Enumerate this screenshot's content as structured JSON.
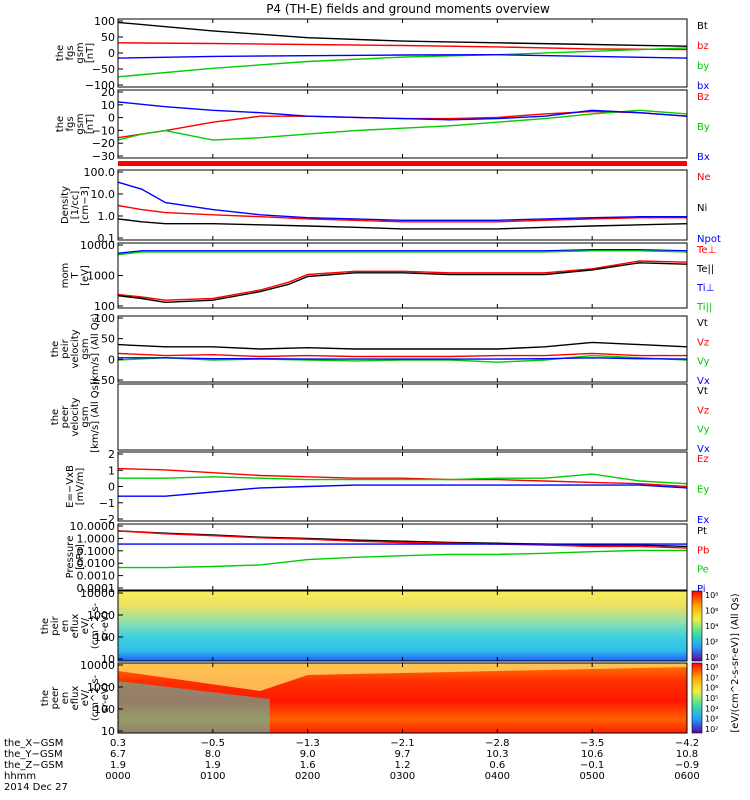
{
  "page": {
    "title": "P4 (TH-E) fields and ground moments overview"
  },
  "colors": {
    "black": "#000000",
    "red": "#ff0000",
    "green": "#00cc00",
    "blue": "#0000ff"
  },
  "chart_data": [
    {
      "id": "p1",
      "type": "line",
      "ylabel": [
        "the",
        "fgs",
        "gsm",
        "[nT]"
      ],
      "yticks": [
        "100",
        "50",
        "0",
        "−50",
        "−100"
      ],
      "ylim": [
        -100,
        100
      ],
      "legend": [
        "Bt",
        "bz",
        "by",
        "bx"
      ],
      "legend_colors": [
        "black",
        "red",
        "green",
        "blue"
      ],
      "x": [
        0,
        1,
        2,
        3,
        4,
        5,
        6
      ],
      "series": [
        {
          "name": "Bt",
          "color": "black",
          "values": [
            90,
            65,
            45,
            35,
            30,
            25,
            20
          ]
        },
        {
          "name": "bz",
          "color": "red",
          "values": [
            30,
            28,
            25,
            22,
            18,
            12,
            10
          ]
        },
        {
          "name": "by",
          "color": "green",
          "values": [
            -70,
            -45,
            -25,
            -12,
            -5,
            5,
            15
          ]
        },
        {
          "name": "bx",
          "color": "blue",
          "values": [
            -15,
            -10,
            -8,
            -6,
            -5,
            -10,
            -15
          ]
        }
      ]
    },
    {
      "id": "p2",
      "type": "line",
      "ylabel": [
        "the",
        "fgs",
        "gsm",
        "[nT]"
      ],
      "yticks": [
        "20",
        "10",
        "0",
        "−10",
        "−20",
        "−30"
      ],
      "ylim": [
        -35,
        22
      ],
      "legend": [
        "Bz",
        "By",
        "Bx"
      ],
      "legend_colors": [
        "red",
        "green",
        "blue"
      ],
      "x": [
        0,
        0.25,
        0.5,
        1,
        1.5,
        2,
        2.5,
        3,
        3.5,
        4,
        4.5,
        5,
        5.5,
        6
      ],
      "series": [
        {
          "name": "Bz",
          "color": "red",
          "values": [
            -18,
            -15,
            -12,
            -5,
            0,
            0,
            -1,
            -2,
            -2,
            -1,
            2,
            4,
            3,
            0
          ]
        },
        {
          "name": "By",
          "color": "green",
          "values": [
            -20,
            -15,
            -12,
            -20,
            -18,
            -15,
            -12,
            -10,
            -8,
            -5,
            -2,
            2,
            5,
            2
          ]
        },
        {
          "name": "Bx",
          "color": "blue",
          "values": [
            12,
            10,
            8,
            5,
            3,
            0,
            -1,
            -2,
            -3,
            -2,
            0,
            5,
            3,
            0
          ]
        }
      ]
    },
    {
      "id": "p3",
      "type": "line",
      "scale": "log",
      "ylabel": [
        "Density",
        "[1/cc]",
        "[cm−3]"
      ],
      "yticks": [
        "100.0",
        "10.0",
        "1.0",
        "0.1"
      ],
      "ylim": [
        0.1,
        100
      ],
      "legend": [
        "Ne",
        "Ni",
        "Npot"
      ],
      "legend_colors": [
        "red",
        "black",
        "blue"
      ],
      "x": [
        0,
        0.25,
        0.5,
        1,
        1.5,
        2,
        2.5,
        3,
        3.5,
        4,
        4.5,
        5,
        5.5,
        6
      ],
      "series": [
        {
          "name": "Ne",
          "color": "red",
          "values": [
            3,
            2,
            1.5,
            1.2,
            1,
            0.8,
            0.7,
            0.6,
            0.6,
            0.6,
            0.7,
            0.8,
            0.9,
            0.9
          ]
        },
        {
          "name": "Ni",
          "color": "black",
          "values": [
            0.8,
            0.6,
            0.5,
            0.5,
            0.45,
            0.4,
            0.35,
            0.3,
            0.3,
            0.3,
            0.35,
            0.4,
            0.45,
            0.5
          ]
        },
        {
          "name": "Npot",
          "color": "blue",
          "values": [
            30,
            15,
            4,
            2,
            1.2,
            0.9,
            0.8,
            0.7,
            0.7,
            0.7,
            0.8,
            0.9,
            1,
            1
          ]
        }
      ]
    },
    {
      "id": "p4",
      "type": "line",
      "scale": "log",
      "ylabel": [
        "mom",
        "T",
        "[eV]"
      ],
      "yticks": [
        "10000",
        "1000",
        "100"
      ],
      "ylim": [
        30,
        10000
      ],
      "legend": [
        "Te⊥",
        "Te||",
        "Ti⊥",
        "Ti||"
      ],
      "legend_colors": [
        "red",
        "black",
        "blue",
        "green"
      ],
      "x": [
        0,
        0.25,
        0.5,
        1,
        1.5,
        1.8,
        2,
        2.5,
        3,
        3.5,
        4,
        4.5,
        5,
        5.5,
        6
      ],
      "series": [
        {
          "name": "Te⊥",
          "color": "red",
          "values": [
            100,
            80,
            60,
            70,
            150,
            300,
            600,
            800,
            800,
            700,
            700,
            700,
            1000,
            2000,
            1800
          ]
        },
        {
          "name": "Te||",
          "color": "black",
          "values": [
            90,
            70,
            50,
            60,
            130,
            250,
            500,
            700,
            700,
            600,
            600,
            600,
            900,
            1700,
            1500
          ]
        },
        {
          "name": "Ti⊥",
          "color": "blue",
          "values": [
            4000,
            5000,
            5000,
            5000,
            5000,
            5000,
            5000,
            5000,
            5000,
            5000,
            5000,
            5000,
            5500,
            5500,
            5000
          ]
        },
        {
          "name": "Ti||",
          "color": "green",
          "values": [
            3500,
            4500,
            4500,
            4500,
            4500,
            4500,
            4500,
            4500,
            4500,
            4500,
            4500,
            4500,
            5000,
            5000,
            4500
          ]
        }
      ]
    },
    {
      "id": "p5",
      "type": "line",
      "ylabel": [
        "the",
        "peir",
        "velocity",
        "gsm",
        "[km/s] (All Qs)"
      ],
      "yticks": [
        "100",
        "50",
        "0",
        "−50"
      ],
      "ylim": [
        -50,
        100
      ],
      "legend": [
        "Vt",
        "Vz",
        "Vy",
        "Vx"
      ],
      "legend_colors": [
        "black",
        "red",
        "green",
        "blue"
      ],
      "x": [
        0,
        0.5,
        1,
        1.5,
        2,
        2.5,
        3,
        3.5,
        4,
        4.5,
        5,
        5.5,
        6
      ],
      "series": [
        {
          "name": "Vt",
          "color": "black",
          "values": [
            35,
            30,
            30,
            25,
            28,
            25,
            25,
            25,
            25,
            30,
            40,
            35,
            30
          ]
        },
        {
          "name": "Vz",
          "color": "red",
          "values": [
            15,
            10,
            12,
            8,
            10,
            8,
            8,
            8,
            10,
            10,
            15,
            10,
            10
          ]
        },
        {
          "name": "Vy",
          "color": "green",
          "values": [
            0,
            5,
            0,
            2,
            0,
            -2,
            0,
            0,
            -5,
            0,
            10,
            5,
            0
          ]
        },
        {
          "name": "Vx",
          "color": "blue",
          "values": [
            5,
            5,
            3,
            3,
            2,
            2,
            2,
            2,
            2,
            3,
            5,
            3,
            2
          ]
        }
      ]
    },
    {
      "id": "p6",
      "type": "line",
      "ylabel": [
        "the",
        "peer",
        "velocity",
        "gsm",
        "[km/s] (All Qs)"
      ],
      "yticks": [],
      "ylim": [
        -50,
        100
      ],
      "legend": [
        "Vt",
        "Vz",
        "Vy",
        "Vx"
      ],
      "legend_colors": [
        "black",
        "red",
        "green",
        "blue"
      ],
      "x": [],
      "series": []
    },
    {
      "id": "p7",
      "type": "line",
      "ylabel": [
        "E=−VxB",
        "[mV/m]"
      ],
      "yticks": [
        "2",
        "1",
        "0",
        "−1",
        "−2"
      ],
      "ylim": [
        -2.6,
        2.4
      ],
      "legend": [
        "Ez",
        "Ey",
        "Ex"
      ],
      "legend_colors": [
        "red",
        "green",
        "blue"
      ],
      "x": [
        0,
        0.5,
        1,
        1.5,
        2,
        2.5,
        3,
        3.5,
        4,
        4.5,
        5,
        5.5,
        6
      ],
      "series": [
        {
          "name": "Ez",
          "color": "red",
          "values": [
            1.2,
            1.1,
            0.9,
            0.7,
            0.6,
            0.5,
            0.5,
            0.4,
            0.4,
            0.3,
            0.2,
            0.1,
            -0.1
          ]
        },
        {
          "name": "Ey",
          "color": "green",
          "values": [
            0.5,
            0.5,
            0.6,
            0.5,
            0.4,
            0.4,
            0.4,
            0.4,
            0.5,
            0.5,
            0.8,
            0.3,
            0.1
          ]
        },
        {
          "name": "Ex",
          "color": "blue",
          "values": [
            -0.8,
            -0.8,
            -0.5,
            -0.2,
            -0.1,
            0,
            0,
            0,
            0,
            0,
            0,
            0,
            -0.2
          ]
        }
      ]
    },
    {
      "id": "p8",
      "type": "line",
      "scale": "log",
      "ylabel": [
        "Pressure",
        "[nPa]"
      ],
      "yticks": [
        "10.0000",
        "1.0000",
        "0.1000",
        "0.0100",
        "0.0010",
        "0.0001"
      ],
      "ylim": [
        0.0001,
        10
      ],
      "legend": [
        "Pt",
        "Pb",
        "Pe",
        "Pi"
      ],
      "legend_colors": [
        "black",
        "red",
        "green",
        "blue"
      ],
      "x": [
        0,
        0.5,
        1,
        1.5,
        2,
        2.5,
        3,
        3.5,
        4,
        4.5,
        5,
        5.5,
        6
      ],
      "series": [
        {
          "name": "Pt",
          "color": "black",
          "values": [
            3,
            2,
            1.5,
            1,
            0.8,
            0.6,
            0.5,
            0.4,
            0.35,
            0.3,
            0.25,
            0.25,
            0.2
          ]
        },
        {
          "name": "Pb",
          "color": "red",
          "values": [
            3,
            1.8,
            1.3,
            0.9,
            0.7,
            0.5,
            0.4,
            0.35,
            0.3,
            0.25,
            0.2,
            0.2,
            0.15
          ]
        },
        {
          "name": "Pe",
          "color": "green",
          "values": [
            0.005,
            0.005,
            0.006,
            0.008,
            0.02,
            0.03,
            0.04,
            0.05,
            0.05,
            0.06,
            0.08,
            0.1,
            0.1
          ]
        },
        {
          "name": "Pi",
          "color": "blue",
          "values": [
            0.3,
            0.3,
            0.3,
            0.3,
            0.3,
            0.3,
            0.3,
            0.3,
            0.3,
            0.3,
            0.3,
            0.3,
            0.3
          ]
        }
      ]
    },
    {
      "id": "p9",
      "type": "heatmap",
      "ylabel": [
        "the",
        "peir",
        "en",
        "eflux",
        "eV/",
        "(cm^2-s-",
        "sr-eV)"
      ],
      "yticks": [
        "10000",
        "1000",
        "100",
        "10"
      ],
      "ylim": [
        10,
        20000
      ],
      "colorbar_label": "[eV/(cm^2-s-sr-eV)] (All Qs)",
      "colorbar_ticks": [
        "10⁸",
        "10⁶",
        "10⁴",
        "10²",
        "10⁰"
      ]
    },
    {
      "id": "p10",
      "type": "heatmap",
      "ylabel": [
        "the",
        "peer",
        "en",
        "eflux",
        "eV/",
        "(cm^2-s-",
        "sr-eV)"
      ],
      "yticks": [
        "10000",
        "1000",
        "100",
        "10"
      ],
      "ylim": [
        10,
        20000
      ],
      "colorbar_label": "",
      "colorbar_ticks": [
        "10⁸",
        "10⁷",
        "10⁶",
        "10⁵",
        "10⁴",
        "10³",
        "10²"
      ]
    }
  ],
  "xaxis": {
    "rows": [
      {
        "label": "the_X−GSM",
        "values": [
          "0.3",
          "−0.5",
          "−1.3",
          "−2.1",
          "−2.8",
          "−3.5",
          "−4.2"
        ]
      },
      {
        "label": "the_Y−GSM",
        "values": [
          "6.7",
          "8.0",
          "9.0",
          "9.7",
          "10.3",
          "10.6",
          "10.8"
        ]
      },
      {
        "label": "the_Z−GSM",
        "values": [
          "1.9",
          "1.9",
          "1.6",
          "1.2",
          "0.6",
          "−0.1",
          "−0.9"
        ]
      },
      {
        "label": "hhmm",
        "values": [
          "0000",
          "0100",
          "0200",
          "0300",
          "0400",
          "0500",
          "0600"
        ]
      }
    ],
    "date": "2014 Dec 27"
  }
}
